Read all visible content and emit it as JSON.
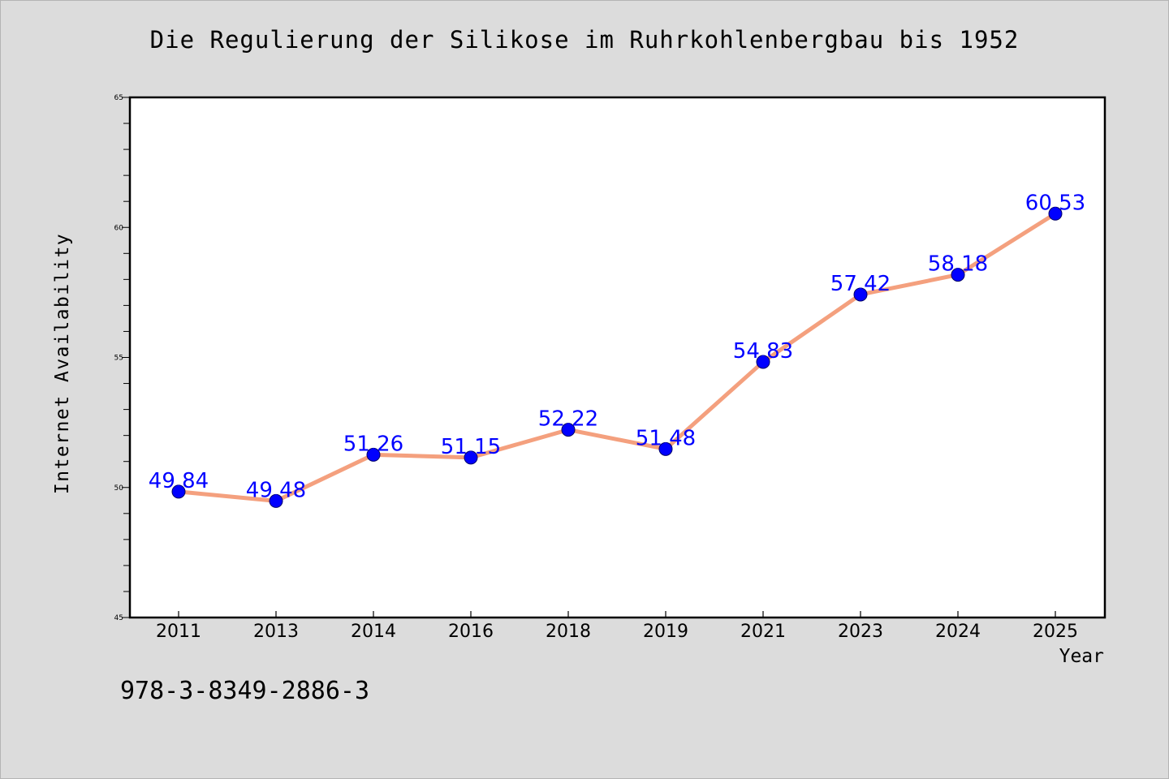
{
  "title": "Die Regulierung der Silikose im Ruhrkohlenbergbau bis 1952",
  "footer_text": "978-3-8349-2886-3",
  "colors": {
    "background": "#dcdcdc",
    "plot_background": "#ffffff",
    "line": "#f4a07e",
    "marker": "#0000ff",
    "data_label": "#0000ff"
  },
  "chart_data": {
    "type": "line",
    "title": "Die Regulierung der Silikose im Ruhrkohlenbergbau bis 1952",
    "xlabel": "Year",
    "ylabel": "Internet Availability",
    "categories": [
      "2011",
      "2013",
      "2014",
      "2016",
      "2018",
      "2019",
      "2021",
      "2023",
      "2024",
      "2025"
    ],
    "series": [
      {
        "values": [
          49.84,
          49.48,
          51.26,
          51.15,
          52.22,
          51.48,
          54.83,
          57.42,
          58.18,
          60.53
        ],
        "labels": [
          "49.84",
          "49.48",
          "51.26",
          "51.15",
          "52.22",
          "51.48",
          "54.83",
          "57.42",
          "58.18",
          "60.53"
        ]
      }
    ],
    "ylim": [
      45,
      65
    ],
    "yticks": [
      45,
      50,
      55,
      60,
      65
    ],
    "grid": false,
    "legend": "none"
  }
}
